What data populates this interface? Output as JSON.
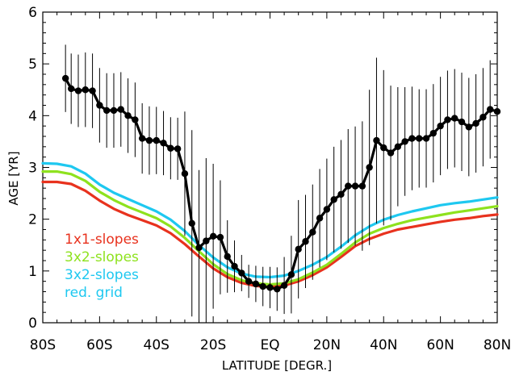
{
  "chart_data": {
    "type": "line",
    "xlabel": "LATITUDE [DEGR.]",
    "ylabel": "AGE [YR]",
    "xlim": [
      -80,
      80
    ],
    "ylim": [
      0,
      6
    ],
    "x_ticks": [
      -80,
      -60,
      -40,
      -20,
      0,
      20,
      40,
      60,
      80
    ],
    "x_tick_labels": [
      "80S",
      "60S",
      "40S",
      "20S",
      "EQ",
      "20N",
      "40N",
      "60N",
      "80N"
    ],
    "y_ticks": [
      0,
      1,
      2,
      3,
      4,
      5,
      6
    ],
    "y_tick_labels": [
      "0",
      "1",
      "2",
      "3",
      "4",
      "5",
      "6"
    ],
    "grid": false,
    "legend_position": "bottom-left",
    "series": [
      {
        "name": "1x1-slopes",
        "color": "#e8321e",
        "x": [
          -80,
          -75,
          -70,
          -65,
          -60,
          -55,
          -50,
          -45,
          -40,
          -35,
          -30,
          -25,
          -20,
          -15,
          -10,
          -5,
          0,
          5,
          10,
          15,
          20,
          25,
          30,
          35,
          40,
          45,
          50,
          55,
          60,
          65,
          70,
          75,
          80
        ],
        "values": [
          2.72,
          2.72,
          2.68,
          2.55,
          2.36,
          2.2,
          2.08,
          1.98,
          1.88,
          1.73,
          1.52,
          1.28,
          1.05,
          0.88,
          0.77,
          0.71,
          0.69,
          0.72,
          0.8,
          0.92,
          1.07,
          1.27,
          1.48,
          1.62,
          1.72,
          1.8,
          1.85,
          1.9,
          1.95,
          1.99,
          2.02,
          2.06,
          2.09
        ]
      },
      {
        "name": "3x2-slopes",
        "color": "#8ee21e",
        "x": [
          -80,
          -75,
          -70,
          -65,
          -60,
          -55,
          -50,
          -45,
          -40,
          -35,
          -30,
          -25,
          -20,
          -15,
          -10,
          -5,
          0,
          5,
          10,
          15,
          20,
          25,
          30,
          35,
          40,
          45,
          50,
          55,
          60,
          65,
          70,
          75,
          80
        ],
        "values": [
          2.92,
          2.92,
          2.87,
          2.74,
          2.53,
          2.37,
          2.24,
          2.13,
          2.02,
          1.86,
          1.64,
          1.38,
          1.13,
          0.94,
          0.82,
          0.76,
          0.74,
          0.76,
          0.84,
          0.97,
          1.12,
          1.33,
          1.55,
          1.72,
          1.83,
          1.91,
          1.98,
          2.03,
          2.08,
          2.13,
          2.17,
          2.21,
          2.25
        ]
      },
      {
        "name": "3x2-slopes",
        "color": "#1ec8f0",
        "x": [
          -80,
          -75,
          -70,
          -65,
          -60,
          -55,
          -50,
          -45,
          -40,
          -35,
          -30,
          -25,
          -20,
          -15,
          -10,
          -5,
          0,
          5,
          10,
          15,
          20,
          25,
          30,
          35,
          40,
          45,
          50,
          55,
          60,
          65,
          70,
          75,
          80
        ],
        "values": [
          3.08,
          3.07,
          3.02,
          2.88,
          2.67,
          2.51,
          2.39,
          2.27,
          2.15,
          1.99,
          1.77,
          1.5,
          1.26,
          1.07,
          0.95,
          0.89,
          0.88,
          0.91,
          1.0,
          1.12,
          1.27,
          1.47,
          1.69,
          1.86,
          1.99,
          2.08,
          2.15,
          2.21,
          2.27,
          2.31,
          2.34,
          2.38,
          2.42
        ]
      },
      {
        "name": "red. grid",
        "color": "#000000",
        "x": [
          -72,
          -70,
          -67.5,
          -65,
          -62.5,
          -60,
          -57.5,
          -55,
          -52.5,
          -50,
          -47.5,
          -45,
          -42.5,
          -40,
          -37.5,
          -35,
          -32.5,
          -30,
          -27.5,
          -25,
          -22.5,
          -20,
          -17.5,
          -15,
          -12.5,
          -10,
          -7.5,
          -5,
          -2.5,
          0,
          2.5,
          5,
          7.5,
          10,
          12.5,
          15,
          17.5,
          20,
          22.5,
          25,
          27.5,
          30,
          32.5,
          35,
          37.5,
          40,
          42.5,
          45,
          47.5,
          50,
          52.5,
          55,
          57.5,
          60,
          62.5,
          65,
          67.5,
          70,
          72.5,
          75,
          77.5,
          80
        ],
        "values": [
          4.72,
          4.52,
          4.48,
          4.5,
          4.48,
          4.2,
          4.1,
          4.1,
          4.12,
          4.0,
          3.92,
          3.56,
          3.52,
          3.52,
          3.47,
          3.37,
          3.36,
          2.88,
          1.92,
          1.45,
          1.58,
          1.67,
          1.65,
          1.28,
          1.09,
          0.96,
          0.8,
          0.75,
          0.7,
          0.68,
          0.65,
          0.72,
          0.93,
          1.42,
          1.57,
          1.75,
          2.02,
          2.19,
          2.38,
          2.48,
          2.64,
          2.64,
          2.64,
          3.0,
          3.52,
          3.38,
          3.28,
          3.4,
          3.5,
          3.56,
          3.56,
          3.56,
          3.66,
          3.8,
          3.92,
          3.95,
          3.88,
          3.78,
          3.85,
          3.97,
          4.12,
          4.08
        ],
        "error": [
          0.65,
          0.68,
          0.7,
          0.72,
          0.72,
          0.72,
          0.72,
          0.72,
          0.72,
          0.72,
          0.72,
          0.68,
          0.66,
          0.65,
          0.62,
          0.6,
          0.6,
          1.2,
          1.8,
          1.5,
          1.6,
          1.4,
          1.1,
          0.7,
          0.5,
          0.35,
          0.32,
          0.35,
          0.38,
          0.4,
          0.42,
          0.55,
          0.75,
          0.95,
          0.9,
          0.92,
          0.95,
          0.98,
          1.02,
          1.05,
          1.1,
          1.15,
          1.25,
          1.5,
          1.6,
          1.5,
          1.3,
          1.15,
          1.05,
          1.0,
          0.95,
          0.95,
          0.95,
          0.95,
          0.95,
          0.95,
          0.95,
          0.95,
          0.95,
          0.95,
          0.95,
          0.95
        ]
      }
    ]
  }
}
